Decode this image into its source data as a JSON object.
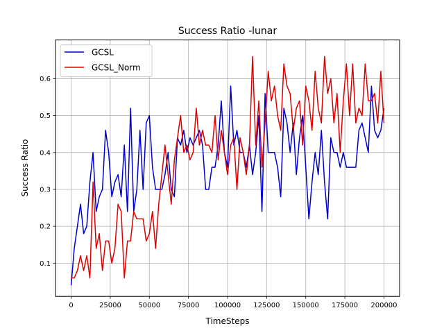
{
  "chart_data": {
    "type": "line",
    "title": "Success Ratio -lunar",
    "xlabel": "TimeSteps",
    "ylabel": "Success Ratio",
    "xlim": [
      -10000,
      210000
    ],
    "ylim": [
      0.01,
      0.705
    ],
    "xticks": [
      0,
      25000,
      50000,
      75000,
      100000,
      125000,
      150000,
      175000,
      200000
    ],
    "xtick_labels": [
      "0",
      "25000",
      "50000",
      "75000",
      "100000",
      "125000",
      "150000",
      "175000",
      "200000"
    ],
    "yticks": [
      0.1,
      0.2,
      0.3,
      0.4,
      0.5,
      0.6
    ],
    "ytick_labels": [
      "0.1",
      "0.2",
      "0.3",
      "0.4",
      "0.5",
      "0.6"
    ],
    "grid": true,
    "legend_position": "top-left",
    "series": [
      {
        "name": "GCSL",
        "color": "#0000cc",
        "x": [
          0,
          2000,
          4000,
          6000,
          8000,
          10000,
          12000,
          14000,
          16000,
          18000,
          20000,
          22000,
          24000,
          26000,
          28000,
          30000,
          32000,
          34000,
          36000,
          38000,
          40000,
          42000,
          44000,
          46000,
          48000,
          50000,
          52000,
          54000,
          56000,
          58000,
          60000,
          62000,
          64000,
          66000,
          68000,
          70000,
          72000,
          74000,
          76000,
          78000,
          80000,
          82000,
          84000,
          86000,
          88000,
          90000,
          92000,
          94000,
          96000,
          98000,
          100000,
          102000,
          104000,
          106000,
          108000,
          110000,
          112000,
          114000,
          116000,
          118000,
          120000,
          122000,
          124000,
          126000,
          128000,
          130000,
          132000,
          134000,
          136000,
          138000,
          140000,
          142000,
          144000,
          146000,
          148000,
          150000,
          152000,
          154000,
          156000,
          158000,
          160000,
          162000,
          164000,
          166000,
          168000,
          170000,
          172000,
          174000,
          176000,
          178000,
          180000,
          182000,
          184000,
          186000,
          188000,
          190000,
          192000,
          194000,
          196000,
          198000,
          200000
        ],
        "y": [
          0.04,
          0.14,
          0.2,
          0.26,
          0.18,
          0.2,
          0.32,
          0.4,
          0.24,
          0.28,
          0.3,
          0.46,
          0.4,
          0.28,
          0.32,
          0.34,
          0.28,
          0.42,
          0.24,
          0.52,
          0.24,
          0.3,
          0.46,
          0.3,
          0.48,
          0.5,
          0.36,
          0.3,
          0.3,
          0.3,
          0.34,
          0.4,
          0.3,
          0.28,
          0.44,
          0.42,
          0.46,
          0.4,
          0.44,
          0.42,
          0.44,
          0.46,
          0.42,
          0.3,
          0.3,
          0.36,
          0.36,
          0.42,
          0.54,
          0.4,
          0.36,
          0.58,
          0.42,
          0.46,
          0.4,
          0.4,
          0.36,
          0.42,
          0.34,
          0.4,
          0.5,
          0.24,
          0.56,
          0.4,
          0.4,
          0.4,
          0.36,
          0.28,
          0.52,
          0.48,
          0.4,
          0.48,
          0.34,
          0.44,
          0.5,
          0.36,
          0.22,
          0.32,
          0.4,
          0.34,
          0.46,
          0.32,
          0.22,
          0.44,
          0.4,
          0.4,
          0.36,
          0.4,
          0.36,
          0.36,
          0.36,
          0.36,
          0.46,
          0.48,
          0.44,
          0.4,
          0.58,
          0.46,
          0.44,
          0.46,
          0.52
        ]
      },
      {
        "name": "GCSL_Norm",
        "color": "#dd0000",
        "x": [
          0,
          2000,
          4000,
          6000,
          8000,
          10000,
          12000,
          14000,
          16000,
          18000,
          20000,
          22000,
          24000,
          26000,
          28000,
          30000,
          32000,
          34000,
          36000,
          38000,
          40000,
          42000,
          44000,
          46000,
          48000,
          50000,
          52000,
          54000,
          56000,
          58000,
          60000,
          62000,
          64000,
          66000,
          68000,
          70000,
          72000,
          74000,
          76000,
          78000,
          80000,
          82000,
          84000,
          86000,
          88000,
          90000,
          92000,
          94000,
          96000,
          98000,
          100000,
          102000,
          104000,
          106000,
          108000,
          110000,
          112000,
          114000,
          116000,
          118000,
          120000,
          122000,
          124000,
          126000,
          128000,
          130000,
          132000,
          134000,
          136000,
          138000,
          140000,
          142000,
          144000,
          146000,
          148000,
          150000,
          152000,
          154000,
          156000,
          158000,
          160000,
          162000,
          164000,
          166000,
          168000,
          170000,
          172000,
          174000,
          176000,
          178000,
          180000,
          182000,
          184000,
          186000,
          188000,
          190000,
          192000,
          194000,
          196000,
          198000,
          200000
        ],
        "y": [
          0.06,
          0.06,
          0.08,
          0.12,
          0.08,
          0.12,
          0.06,
          0.32,
          0.14,
          0.18,
          0.08,
          0.16,
          0.16,
          0.1,
          0.14,
          0.26,
          0.24,
          0.06,
          0.16,
          0.16,
          0.24,
          0.22,
          0.22,
          0.22,
          0.16,
          0.18,
          0.24,
          0.14,
          0.26,
          0.34,
          0.42,
          0.34,
          0.26,
          0.38,
          0.44,
          0.5,
          0.4,
          0.42,
          0.38,
          0.4,
          0.52,
          0.42,
          0.46,
          0.42,
          0.42,
          0.4,
          0.5,
          0.38,
          0.46,
          0.4,
          0.34,
          0.42,
          0.44,
          0.3,
          0.44,
          0.4,
          0.34,
          0.42,
          0.66,
          0.42,
          0.54,
          0.36,
          0.48,
          0.62,
          0.54,
          0.58,
          0.5,
          0.46,
          0.64,
          0.58,
          0.56,
          0.46,
          0.52,
          0.54,
          0.42,
          0.58,
          0.54,
          0.46,
          0.62,
          0.52,
          0.48,
          0.66,
          0.56,
          0.6,
          0.48,
          0.56,
          0.4,
          0.54,
          0.64,
          0.5,
          0.64,
          0.48,
          0.52,
          0.5,
          0.64,
          0.54,
          0.54,
          0.56,
          0.48,
          0.62,
          0.48
        ]
      }
    ]
  }
}
